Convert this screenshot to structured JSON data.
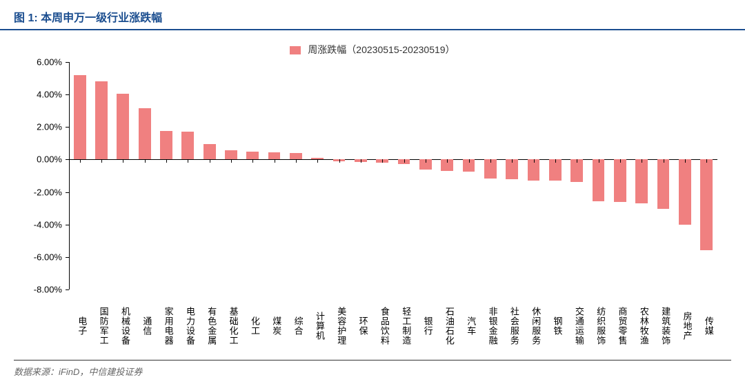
{
  "title": "图 1: 本周申万一级行业涨跌幅",
  "legend_label": "周涨跌幅（20230515-20230519）",
  "source_label": "数据来源：iFinD，中信建投证券",
  "chart": {
    "type": "bar",
    "bar_color": "#f08080",
    "title_color": "#1a4d8f",
    "title_underline_color": "#1a4d8f",
    "background_color": "#ffffff",
    "axis_color": "#000000",
    "label_fontsize": 13,
    "title_fontsize": 16,
    "legend_fontsize": 14,
    "ylim": [
      -8,
      6
    ],
    "ytick_step": 2,
    "yticks": [
      {
        "v": 6,
        "label": "6.00%"
      },
      {
        "v": 4,
        "label": "4.00%"
      },
      {
        "v": 2,
        "label": "2.00%"
      },
      {
        "v": 0,
        "label": "0.00%"
      },
      {
        "v": -2,
        "label": "-2.00%"
      },
      {
        "v": -4,
        "label": "-4.00%"
      },
      {
        "v": -6,
        "label": "-6.00%"
      },
      {
        "v": -8,
        "label": "-8.00%"
      }
    ],
    "categories": [
      "电子",
      "国防军工",
      "机械设备",
      "通信",
      "家用电器",
      "电力设备",
      "有色金属",
      "基础化工",
      "化工",
      "煤炭",
      "综合",
      "计算机",
      "美容护理",
      "环保",
      "食品饮料",
      "轻工制造",
      "银行",
      "石油石化",
      "汽车",
      "非银金融",
      "社会服务",
      "休闲服务",
      "钢铁",
      "交通运输",
      "纺织服饰",
      "商贸零售",
      "农林牧渔",
      "建筑装饰",
      "房地产",
      "传媒"
    ],
    "values": [
      5.2,
      4.8,
      4.05,
      3.15,
      1.75,
      1.7,
      0.95,
      0.55,
      0.5,
      0.45,
      0.4,
      0.1,
      -0.1,
      -0.15,
      -0.2,
      -0.3,
      -0.6,
      -0.7,
      -0.75,
      -1.15,
      -1.2,
      -1.3,
      -1.3,
      -1.4,
      -2.55,
      -2.6,
      -2.7,
      -3.05,
      -4.0,
      -5.6
    ]
  }
}
